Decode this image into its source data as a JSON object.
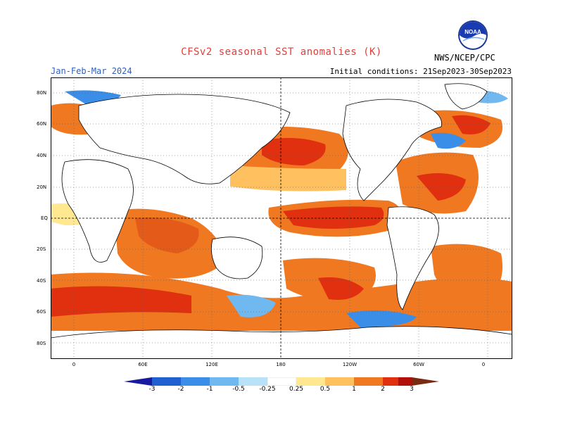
{
  "header": {
    "title": "CFSv2 seasonal SST anomalies (K)",
    "season": "Jan-Feb-Mar 2024",
    "initial_conditions": "Initial conditions: 21Sep2023-30Sep2023",
    "organization": "NWS/NCEP/CPC",
    "logo_text": "NOAA"
  },
  "map": {
    "lat_labels": [
      "80N",
      "60N",
      "40N",
      "20N",
      "EQ",
      "20S",
      "40S",
      "60S",
      "80S"
    ],
    "lon_labels": [
      "0",
      "60E",
      "120E",
      "180",
      "120W",
      "60W",
      "0"
    ],
    "colors": {
      "neg3": "#1a1aa0",
      "neg2": "#2060d0",
      "neg1": "#3a8ee8",
      "neg05": "#70b8f0",
      "neg025": "#b8e2f8",
      "neutral": "#ffffff",
      "pos025": "#ffe890",
      "pos05": "#ffc060",
      "pos1": "#f07820",
      "pos2": "#e03010",
      "pos3": "#b01008",
      "pos4": "#7a2a10"
    },
    "grid_lines": "dotted",
    "reference_lines": [
      "EQ",
      "180"
    ]
  },
  "colorbar": {
    "labels": [
      "-3",
      "-2",
      "-1",
      "-0.5",
      "-0.25",
      "0.25",
      "0.5",
      "1",
      "2",
      "3"
    ]
  }
}
